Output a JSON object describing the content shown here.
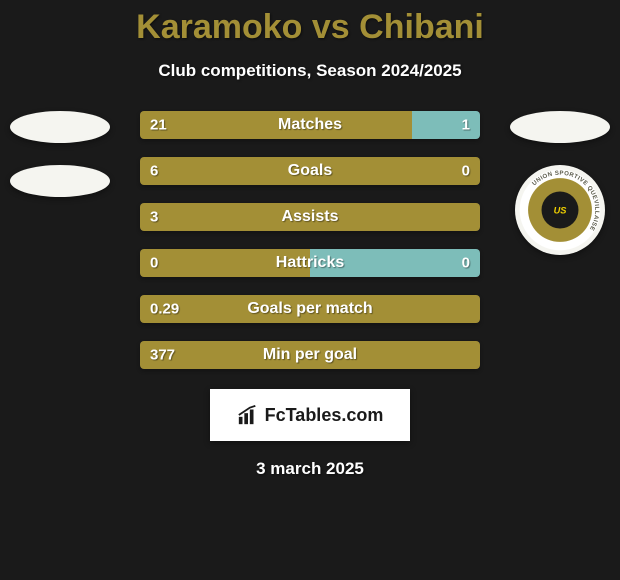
{
  "title": {
    "player1": "Karamoko",
    "vs": "vs",
    "player2": "Chibani",
    "color": "#a38f36",
    "fontsize": 34
  },
  "subtitle": {
    "text": "Club competitions, Season 2024/2025",
    "fontsize": 17
  },
  "colors": {
    "left_bar": "#a38f36",
    "right_bar": "#7dbdb9",
    "background": "#1a1a1a",
    "text": "#ffffff"
  },
  "bars": {
    "value_fontsize": 15,
    "label_fontsize": 16,
    "rows": [
      {
        "label": "Matches",
        "left_val": "21",
        "right_val": "1",
        "left_pct": 80,
        "right_pct": 20
      },
      {
        "label": "Goals",
        "left_val": "6",
        "right_val": "0",
        "left_pct": 100,
        "right_pct": 0
      },
      {
        "label": "Assists",
        "left_val": "3",
        "right_val": "",
        "left_pct": 100,
        "right_pct": 0
      },
      {
        "label": "Hattricks",
        "left_val": "0",
        "right_val": "0",
        "left_pct": 50,
        "right_pct": 50
      },
      {
        "label": "Goals per match",
        "left_val": "0.29",
        "right_val": "",
        "left_pct": 100,
        "right_pct": 0
      },
      {
        "label": "Min per goal",
        "left_val": "377",
        "right_val": "",
        "left_pct": 100,
        "right_pct": 0
      }
    ]
  },
  "badges": {
    "left": [
      {
        "shape": "small"
      },
      {
        "shape": "medium"
      }
    ],
    "right": [
      {
        "shape": "small"
      },
      {
        "shape": "round",
        "club_ring_text": "UNION SPORTIVE QUEVILLAISE",
        "ring_color": "#ffffff",
        "inner_bg": "#a38f36",
        "center_bg": "#1a1a1a"
      }
    ]
  },
  "logo": {
    "text": "FcTables.com",
    "fontsize": 18
  },
  "date": {
    "text": "3 march 2025",
    "fontsize": 17
  }
}
